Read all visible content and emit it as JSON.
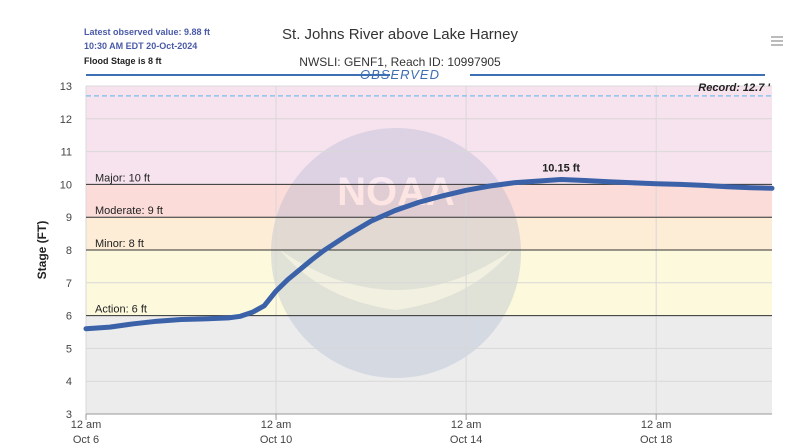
{
  "header": {
    "latest_value": "Latest observed value: 9.88 ft",
    "latest_time": "10:30 AM EDT 20-Oct-2024",
    "flood_stage_note": "Flood Stage is 8 ft"
  },
  "chart_data": {
    "type": "line",
    "title": "St. Johns River above Lake Harney",
    "subtitle": "NWSLI: GENF1, Reach ID: 10997905",
    "band_label": "OBSERVED",
    "ylabel": "Stage (FT)",
    "xlabel": "",
    "ylim": [
      3,
      13
    ],
    "yticks": [
      "3",
      "4",
      "5",
      "6",
      "7",
      "8",
      "9",
      "10",
      "11",
      "12",
      "13"
    ],
    "xlim": [
      "2024-10-06 00:00",
      "2024-10-20 10:30"
    ],
    "xticks": [
      {
        "x": "2024-10-06 00:00",
        "time": "12 am",
        "date": "Oct 6"
      },
      {
        "x": "2024-10-10 00:00",
        "time": "12 am",
        "date": "Oct 10"
      },
      {
        "x": "2024-10-14 00:00",
        "time": "12 am",
        "date": "Oct 14"
      },
      {
        "x": "2024-10-18 00:00",
        "time": "12 am",
        "date": "Oct 18"
      }
    ],
    "thresholds": [
      {
        "label": "Major: 10 ft",
        "value": 10
      },
      {
        "label": "Moderate: 9 ft",
        "value": 9
      },
      {
        "label": "Minor: 8 ft",
        "value": 8
      },
      {
        "label": "Action: 6 ft",
        "value": 6
      }
    ],
    "record": {
      "label": "Record: 12.7 '",
      "value": 12.7
    },
    "peak": {
      "label": "10.15 ft",
      "x": "2024-10-16 00:00",
      "y": 10.15
    },
    "zones": [
      {
        "from": 3,
        "to": 6,
        "color": "#ececec"
      },
      {
        "from": 6,
        "to": 8,
        "color": "#fdf9dd"
      },
      {
        "from": 8,
        "to": 9,
        "color": "#fdecd6"
      },
      {
        "from": 9,
        "to": 10,
        "color": "#fbdcd8"
      },
      {
        "from": 10,
        "to": 13,
        "color": "#f7e3ee"
      }
    ],
    "colors": {
      "line": "#3b62a8",
      "record": "#8ec3ec",
      "grid": "#d8d8d8"
    },
    "series": [
      {
        "x": [
          "2024-10-06 00:00",
          "2024-10-06 12:00",
          "2024-10-07 00:00",
          "2024-10-07 12:00",
          "2024-10-08 00:00",
          "2024-10-08 12:00",
          "2024-10-09 00:00",
          "2024-10-09 06:00",
          "2024-10-09 12:00",
          "2024-10-09 18:00",
          "2024-10-10 00:00",
          "2024-10-10 06:00",
          "2024-10-10 12:00",
          "2024-10-10 18:00",
          "2024-10-11 00:00",
          "2024-10-11 12:00",
          "2024-10-12 00:00",
          "2024-10-12 12:00",
          "2024-10-13 00:00",
          "2024-10-13 12:00",
          "2024-10-14 00:00",
          "2024-10-14 12:00",
          "2024-10-15 00:00",
          "2024-10-15 12:00",
          "2024-10-16 00:00",
          "2024-10-16 12:00",
          "2024-10-17 00:00",
          "2024-10-17 12:00",
          "2024-10-18 00:00",
          "2024-10-18 12:00",
          "2024-10-19 00:00",
          "2024-10-19 12:00",
          "2024-10-20 00:00",
          "2024-10-20 10:30"
        ],
        "values": [
          5.6,
          5.65,
          5.75,
          5.83,
          5.88,
          5.9,
          5.93,
          5.98,
          6.1,
          6.3,
          6.75,
          7.1,
          7.4,
          7.7,
          7.98,
          8.45,
          8.88,
          9.2,
          9.45,
          9.65,
          9.82,
          9.95,
          10.05,
          10.1,
          10.15,
          10.12,
          10.08,
          10.05,
          10.02,
          10.0,
          9.97,
          9.93,
          9.9,
          9.88
        ]
      }
    ]
  }
}
